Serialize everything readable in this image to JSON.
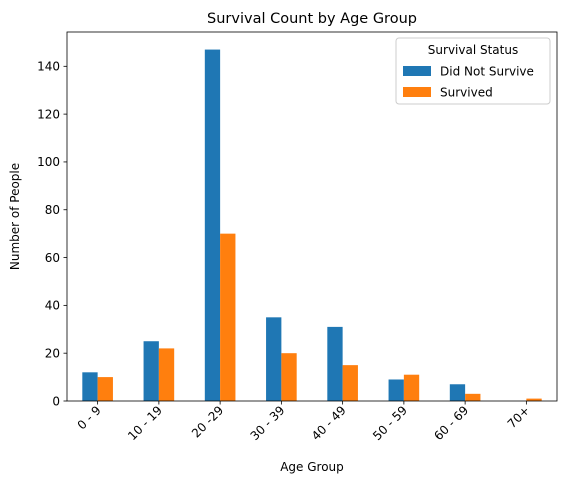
{
  "chart_data": {
    "type": "bar",
    "title": "Survival Count by Age Group",
    "xlabel": "Age Group",
    "ylabel": "Number of People",
    "categories": [
      "0 - 9",
      "10 - 19",
      "20 -29",
      "30 - 39",
      "40 - 49",
      "50 - 59",
      "60 - 69",
      "70+"
    ],
    "series": [
      {
        "name": "Did Not Survive",
        "color": "#1f77b4",
        "values": [
          12,
          25,
          147,
          35,
          31,
          9,
          7,
          0
        ]
      },
      {
        "name": "Survived",
        "color": "#ff7f0e",
        "values": [
          10,
          22,
          70,
          20,
          15,
          11,
          3,
          1
        ]
      }
    ],
    "ylim": [
      0,
      154.35
    ],
    "yticks": [
      0,
      20,
      40,
      60,
      80,
      100,
      120,
      140
    ],
    "grid": false,
    "legend": {
      "title": "Survival Status",
      "placement": "top-right"
    }
  }
}
